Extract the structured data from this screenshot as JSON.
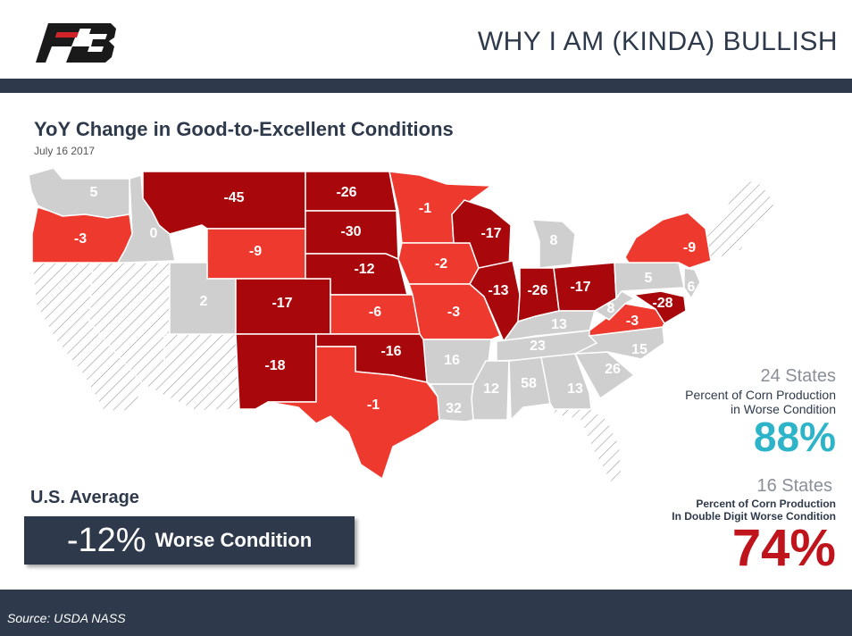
{
  "header": {
    "title": "WHY I AM (KINDA) BULLISH",
    "logo_text": "FB"
  },
  "map": {
    "title": "YoY Change in Good-to-Excellent Conditions",
    "date": "July 16 2017",
    "colors": {
      "improved_or_flat": "#cfcfcf",
      "worse": "#ee3a2e",
      "double_digit_worse": "#a8080c",
      "no_data": "hatched"
    },
    "states": [
      {
        "state": "WA",
        "value": "5"
      },
      {
        "state": "OR",
        "value": "-3"
      },
      {
        "state": "ID",
        "value": "0"
      },
      {
        "state": "MT",
        "value": "-45"
      },
      {
        "state": "WY",
        "value": "-9"
      },
      {
        "state": "UT",
        "value": "2"
      },
      {
        "state": "CO",
        "value": "-17"
      },
      {
        "state": "NM",
        "value": "-18"
      },
      {
        "state": "ND",
        "value": "-26"
      },
      {
        "state": "SD",
        "value": "-30"
      },
      {
        "state": "NE",
        "value": "-12"
      },
      {
        "state": "KS",
        "value": "-6"
      },
      {
        "state": "OK",
        "value": "-16"
      },
      {
        "state": "TX",
        "value": "-1"
      },
      {
        "state": "MN",
        "value": "-1"
      },
      {
        "state": "IA",
        "value": "-2"
      },
      {
        "state": "MO",
        "value": "-3"
      },
      {
        "state": "AR",
        "value": "16"
      },
      {
        "state": "LA",
        "value": "32"
      },
      {
        "state": "WI",
        "value": "-17"
      },
      {
        "state": "IL",
        "value": "-13"
      },
      {
        "state": "MI",
        "value": "8"
      },
      {
        "state": "IN",
        "value": "-26"
      },
      {
        "state": "OH",
        "value": "-17"
      },
      {
        "state": "KY",
        "value": "13"
      },
      {
        "state": "TN",
        "value": "23"
      },
      {
        "state": "MS",
        "value": "12"
      },
      {
        "state": "AL",
        "value": "58"
      },
      {
        "state": "GA",
        "value": "13"
      },
      {
        "state": "SC",
        "value": "26"
      },
      {
        "state": "NC",
        "value": "15"
      },
      {
        "state": "VA",
        "value": "-3"
      },
      {
        "state": "WV",
        "value": "8"
      },
      {
        "state": "PA",
        "value": "5"
      },
      {
        "state": "NY",
        "value": "-9"
      },
      {
        "state": "MD",
        "value": "-28"
      },
      {
        "state": "NJ",
        "value": "6"
      }
    ]
  },
  "stats": {
    "worse": {
      "count": "24 States",
      "desc_line1": "Percent of Corn Production",
      "desc_line2": "in Worse Condition",
      "percent": "88%"
    },
    "double_digit": {
      "count": "16 States",
      "desc_line1": "Percent of Corn Production",
      "desc_line2": "In Double Digit Worse Condition",
      "percent": "74%"
    }
  },
  "average": {
    "label": "U.S. Average",
    "value": "-12%",
    "suffix": "Worse Condition"
  },
  "footer": {
    "source": "Source: USDA NASS"
  }
}
